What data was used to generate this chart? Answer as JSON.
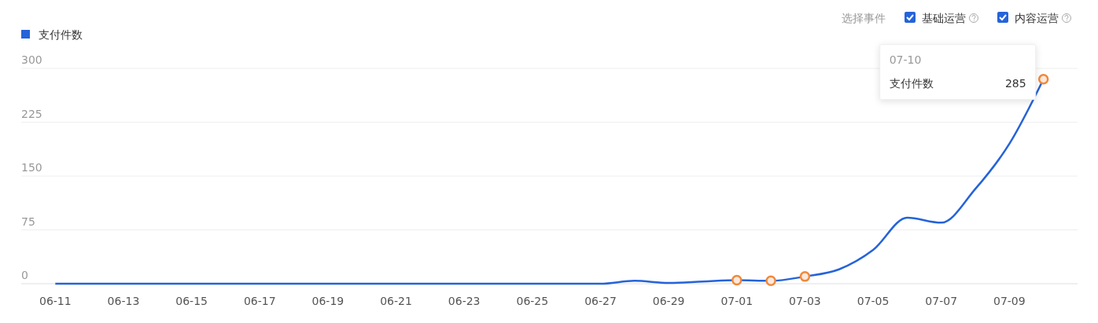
{
  "chart_data": {
    "type": "line",
    "x": [
      "--06-11",
      "--06-12",
      "--06-13",
      "--06-14",
      "--06-15",
      "--06-16",
      "--06-17",
      "--06-18",
      "--06-19",
      "--06-20",
      "--06-21",
      "--06-22",
      "--06-23",
      "--06-24",
      "--06-25",
      "--06-26",
      "--06-27",
      "--06-28",
      "--06-29",
      "--06-30",
      "--07-01",
      "--07-02",
      "--07-03",
      "--07-04",
      "--07-05",
      "--07-06",
      "--07-07",
      "--07-08",
      "--07-09",
      "--07-10"
    ],
    "series": [
      {
        "name": "支付件数",
        "color": "#2563d9",
        "values": [
          0,
          0,
          0,
          0,
          0,
          0,
          0,
          0,
          0,
          0,
          0,
          0,
          0,
          0,
          0,
          0,
          0,
          4,
          1,
          3,
          5,
          4,
          10,
          20,
          47,
          92,
          85,
          132,
          195,
          285
        ],
        "value_labels": [
          null,
          null,
          null,
          null,
          null,
          null,
          null,
          null,
          null,
          null,
          null,
          null,
          null,
          null,
          null,
          null,
          null,
          null,
          null,
          null,
          null,
          null,
          null,
          null,
          null,
          null,
          null,
          null,
          null,
          "285"
        ]
      },
      {
        "type": "scatter",
        "color": "#f0883a",
        "x": [
          "--07-01",
          "--07-02",
          "--07-03",
          "--07-10"
        ],
        "values": [
          5,
          4,
          10,
          285
        ]
      }
    ],
    "xlim": [
      "--06-10",
      "--07-11"
    ],
    "xticks": [
      {
        "value": "--06-11",
        "label": "06-11"
      },
      {
        "value": "--06-13",
        "label": "06-13"
      },
      {
        "value": "--06-15",
        "label": "06-15"
      },
      {
        "value": "--06-17",
        "label": "06-17"
      },
      {
        "value": "--06-19",
        "label": "06-19"
      },
      {
        "value": "--06-21",
        "label": "06-21"
      },
      {
        "value": "--06-23",
        "label": "06-23"
      },
      {
        "value": "--06-25",
        "label": "06-25"
      },
      {
        "value": "--06-27",
        "label": "06-27"
      },
      {
        "value": "--06-29",
        "label": "06-29"
      },
      {
        "value": "--07-01",
        "label": "07-01"
      },
      {
        "value": "--07-03",
        "label": "07-03"
      },
      {
        "value": "--07-05",
        "label": "07-05"
      },
      {
        "value": "--07-07",
        "label": "07-07"
      },
      {
        "value": "--07-09",
        "label": "07-09"
      }
    ],
    "ylim": [
      0,
      300
    ],
    "yticks": [
      0,
      75,
      150,
      225,
      300
    ],
    "grid": "y",
    "legend": "top left",
    "line_style": "solid",
    "annotations": [
      "07-10",
      "选择事件",
      "基础运营",
      "内容运营"
    ]
  }
}
